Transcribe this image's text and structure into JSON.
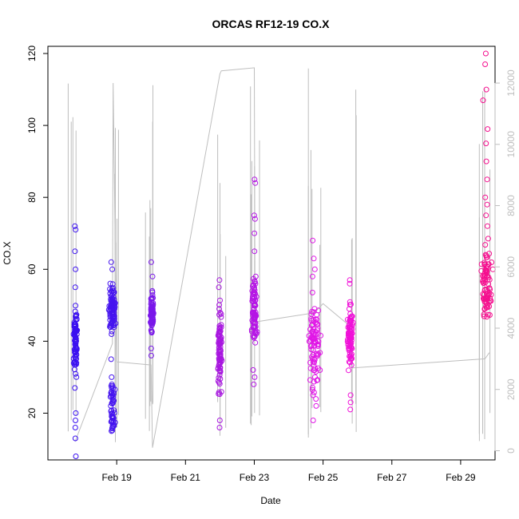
{
  "chart_data": {
    "type": "scatter",
    "title": "ORCAS RF12-19 CO.X",
    "xlabel": "Date",
    "ylabel": "CO.X",
    "xlim": [
      "2016-02-17T00:00",
      "2016-03-01T00:00"
    ],
    "ylim": [
      7,
      122
    ],
    "x_ticks": [
      {
        "label": "Feb 19",
        "date": "2016-02-19"
      },
      {
        "label": "Feb 21",
        "date": "2016-02-21"
      },
      {
        "label": "Feb 23",
        "date": "2016-02-23"
      },
      {
        "label": "Feb 25",
        "date": "2016-02-25"
      },
      {
        "label": "Feb 27",
        "date": "2016-02-27"
      },
      {
        "label": "Feb 29",
        "date": "2016-02-29"
      }
    ],
    "y_ticks": [
      20,
      40,
      60,
      80,
      100,
      120
    ],
    "y2_ticks": [
      0,
      2000,
      4000,
      6000,
      8000,
      10000,
      12000
    ],
    "y2lim": [
      -300,
      13200
    ],
    "grid": false,
    "series": [
      {
        "color": "#3a10f0",
        "t_start": "2016-02-17T18:00",
        "t_end": "2016-02-17T20:30",
        "x_center": "2016-02-17T19:10",
        "y_core_min": 28,
        "y_core_max": 52,
        "outliers": [
          8,
          13,
          16,
          18,
          20,
          27,
          55,
          60,
          65,
          71,
          72
        ]
      },
      {
        "color": "#4514ef",
        "t_start": "2016-02-18T18:00",
        "t_end": "2016-02-19T00:30",
        "x_center": "2016-02-18T21:00",
        "y_core_min": 40,
        "y_core_max": 58,
        "outliers": [
          16,
          18,
          20,
          22,
          25,
          28,
          30,
          35,
          60,
          62
        ],
        "low_cluster": [
          15,
          28
        ]
      },
      {
        "color": "#7a18ea",
        "t_start": "2016-02-19T23:00",
        "t_end": "2016-02-20T02:00",
        "x_center": "2016-02-20T00:30",
        "y_core_min": 40,
        "y_core_max": 55,
        "outliers": [
          36,
          38,
          58,
          62
        ]
      },
      {
        "color": "#a816e0",
        "t_start": "2016-02-21T22:00",
        "t_end": "2016-02-22T02:00",
        "x_center": "2016-02-22T00:00",
        "y_core_min": 20,
        "y_core_max": 54,
        "outliers": [
          16,
          18,
          55,
          57
        ]
      },
      {
        "color": "#b516e5",
        "t_start": "2016-02-22T22:00",
        "t_end": "2016-02-23T03:00",
        "x_center": "2016-02-23T00:00",
        "y_core_min": 35,
        "y_core_max": 62,
        "outliers": [
          28,
          30,
          32,
          65,
          70,
          74,
          75,
          84,
          85
        ]
      },
      {
        "color": "#e016e6",
        "t_start": "2016-02-24T12:00",
        "t_end": "2016-02-24T23:00",
        "x_center": "2016-02-24T18:00",
        "y_core_min": 20,
        "y_core_max": 56,
        "outliers": [
          18,
          22,
          25,
          58,
          60,
          63,
          68
        ]
      },
      {
        "color": "#f010d8",
        "t_start": "2016-02-25T16:00",
        "t_end": "2016-02-25T22:00",
        "x_center": "2016-02-25T19:00",
        "y_core_min": 28,
        "y_core_max": 55,
        "outliers": [
          21,
          23,
          25,
          56,
          57
        ]
      },
      {
        "color": "#f5108f",
        "t_start": "2016-02-29T12:00",
        "t_end": "2016-02-29T23:00",
        "x_center": "2016-02-29T18:00",
        "y_core_min": 40,
        "y_core_max": 70,
        "outliers": [
          72,
          75,
          78,
          80,
          85,
          90,
          95,
          99,
          107,
          110,
          117,
          120
        ]
      }
    ],
    "secondary_line": {
      "color": "#bebebe",
      "x": [
        "2016-02-17T19:00",
        "2016-02-18T21:00",
        "2016-02-18T21:30",
        "2016-02-19T00:00",
        "2016-02-20T00:00",
        "2016-02-20T01:00",
        "2016-02-22T00:00",
        "2016-02-22T01:00",
        "2016-02-23T00:00",
        "2016-02-23T00:30",
        "2016-02-24T18:00",
        "2016-02-25T00:00",
        "2016-02-25T18:00",
        "2016-02-25T20:00",
        "2016-02-29T17:00",
        "2016-02-29T20:00"
      ],
      "y": [
        300,
        3500,
        12000,
        2900,
        2800,
        100,
        12300,
        12400,
        12500,
        4200,
        4500,
        4800,
        4100,
        2700,
        3000,
        3200
      ]
    }
  }
}
